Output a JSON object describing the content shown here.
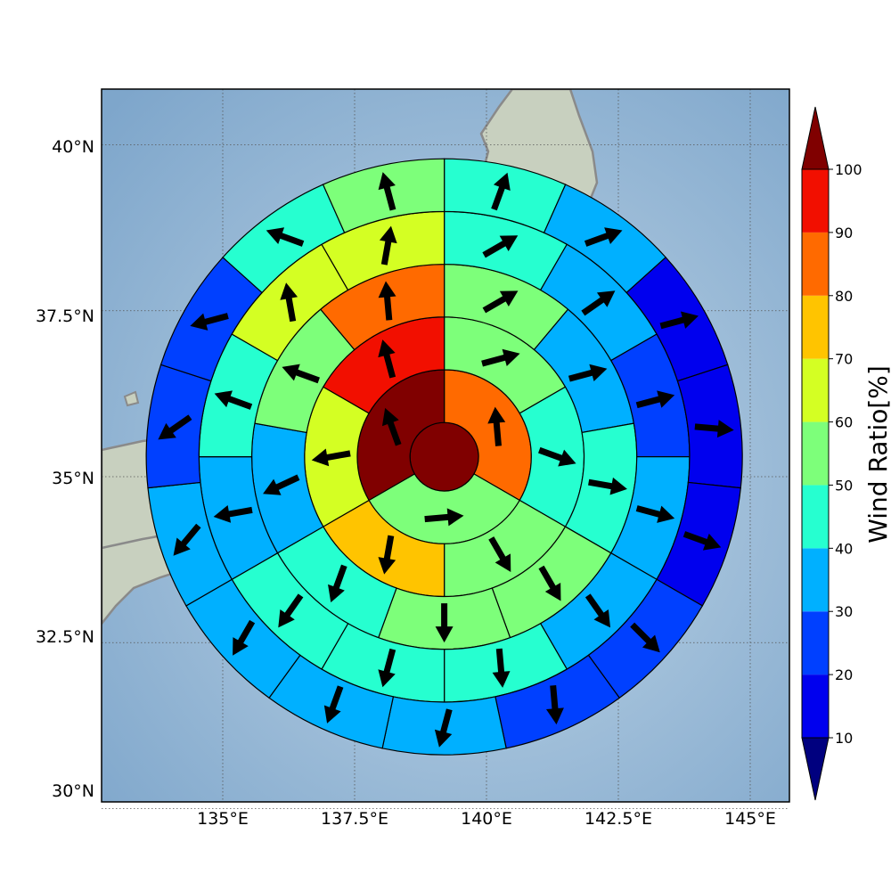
{
  "map": {
    "longitude_ticks": [
      "135°E",
      "137.5°E",
      "140°E",
      "142.5°E",
      "145°E"
    ],
    "latitude_ticks": [
      "40°N",
      "37.5°N",
      "35°N",
      "32.5°N",
      "30°N"
    ],
    "longitude_range": [
      132.7,
      145.8
    ],
    "latitude_range": [
      29.8,
      40.8
    ],
    "grid": "dotted"
  },
  "chart_data": {
    "type": "heatmap",
    "description_type": "polar sector grid of wind ratio with wind direction arrows",
    "center": {
      "lon": 139.2,
      "lat": 35.3
    },
    "ring_radius_deg": [
      0.65,
      1.65,
      2.65,
      3.65,
      4.65,
      5.65
    ],
    "sectors_per_ring": [
      1,
      3,
      6,
      9,
      12,
      15
    ],
    "rings": [
      {
        "ring": 1,
        "sectors": [
          {
            "ratio": 100,
            "dir": 0
          }
        ]
      },
      {
        "ring": 2,
        "sectors": [
          {
            "ratio": 85,
            "dir": 355
          },
          {
            "ratio": 55,
            "dir": 85
          },
          {
            "ratio": 100,
            "dir": 340
          }
        ]
      },
      {
        "ring": 3,
        "sectors": [
          {
            "ratio": 55,
            "dir": 75
          },
          {
            "ratio": 45,
            "dir": 110
          },
          {
            "ratio": 55,
            "dir": 150
          },
          {
            "ratio": 75,
            "dir": 190
          },
          {
            "ratio": 65,
            "dir": 260
          },
          {
            "ratio": 95,
            "dir": 345
          }
        ]
      },
      {
        "ring": 4,
        "sectors": [
          {
            "ratio": 55,
            "dir": 60
          },
          {
            "ratio": 35,
            "dir": 75
          },
          {
            "ratio": 45,
            "dir": 100
          },
          {
            "ratio": 55,
            "dir": 150
          },
          {
            "ratio": 55,
            "dir": 180
          },
          {
            "ratio": 45,
            "dir": 200
          },
          {
            "ratio": 35,
            "dir": 245
          },
          {
            "ratio": 55,
            "dir": 290
          },
          {
            "ratio": 85,
            "dir": 355
          }
        ]
      },
      {
        "ring": 5,
        "sectors": [
          {
            "ratio": 45,
            "dir": 60
          },
          {
            "ratio": 35,
            "dir": 55
          },
          {
            "ratio": 25,
            "dir": 75
          },
          {
            "ratio": 35,
            "dir": 105
          },
          {
            "ratio": 35,
            "dir": 145
          },
          {
            "ratio": 45,
            "dir": 175
          },
          {
            "ratio": 45,
            "dir": 195
          },
          {
            "ratio": 45,
            "dir": 215
          },
          {
            "ratio": 35,
            "dir": 260
          },
          {
            "ratio": 45,
            "dir": 290
          },
          {
            "ratio": 65,
            "dir": 350
          },
          {
            "ratio": 65,
            "dir": 10
          }
        ]
      },
      {
        "ring": 6,
        "sectors": [
          {
            "ratio": 45,
            "dir": 20
          },
          {
            "ratio": 35,
            "dir": 70
          },
          {
            "ratio": 15,
            "dir": 75
          },
          {
            "ratio": 15,
            "dir": 95
          },
          {
            "ratio": 15,
            "dir": 110
          },
          {
            "ratio": 25,
            "dir": 135
          },
          {
            "ratio": 25,
            "dir": 175
          },
          {
            "ratio": 35,
            "dir": 195
          },
          {
            "ratio": 35,
            "dir": 200
          },
          {
            "ratio": 35,
            "dir": 210
          },
          {
            "ratio": 35,
            "dir": 220
          },
          {
            "ratio": 25,
            "dir": 235
          },
          {
            "ratio": 25,
            "dir": 255
          },
          {
            "ratio": 45,
            "dir": 290
          },
          {
            "ratio": 55,
            "dir": 345
          }
        ]
      }
    ]
  },
  "colorbar": {
    "label": "Wind Ratio[%]",
    "ticks": [
      "10",
      "20",
      "30",
      "40",
      "50",
      "60",
      "70",
      "80",
      "90",
      "100"
    ],
    "levels": [
      {
        "min": 10,
        "max": 20,
        "color": "#0000ee"
      },
      {
        "min": 20,
        "max": 30,
        "color": "#0040ff"
      },
      {
        "min": 30,
        "max": 40,
        "color": "#00b0ff"
      },
      {
        "min": 40,
        "max": 50,
        "color": "#26ffd0"
      },
      {
        "min": 50,
        "max": 60,
        "color": "#7dff7a"
      },
      {
        "min": 60,
        "max": 70,
        "color": "#d4ff23"
      },
      {
        "min": 70,
        "max": 80,
        "color": "#ffc400"
      },
      {
        "min": 80,
        "max": 90,
        "color": "#ff6a00"
      },
      {
        "min": 90,
        "max": 100,
        "color": "#f20f00"
      }
    ],
    "under_color": "#00007f",
    "over_color": "#800000"
  }
}
